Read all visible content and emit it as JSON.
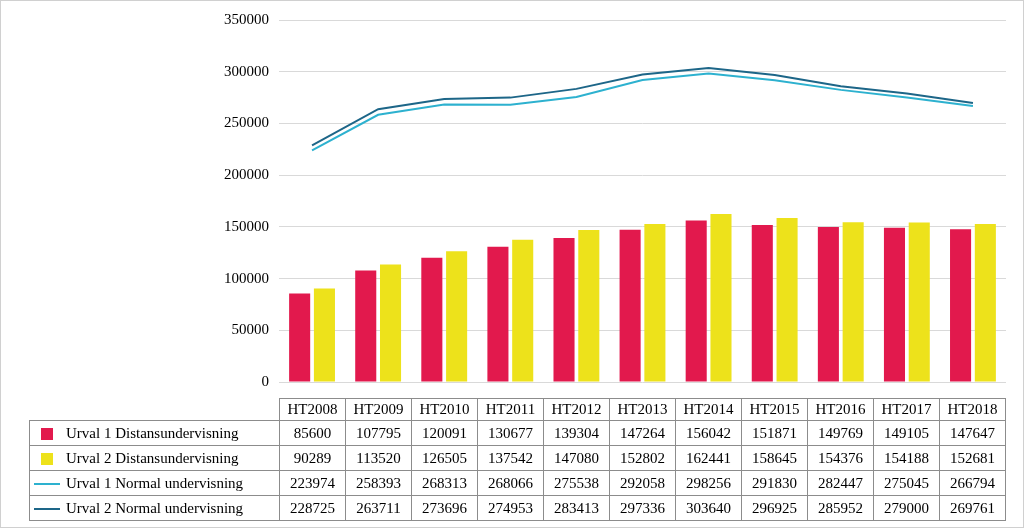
{
  "chart_data": {
    "type": "bar",
    "categories": [
      "HT2008",
      "HT2009",
      "HT2010",
      "HT2011",
      "HT2012",
      "HT2013",
      "HT2014",
      "HT2015",
      "HT2016",
      "HT2017",
      "HT2018"
    ],
    "series": [
      {
        "name": "Urval 1 Distansundervisning",
        "type": "bar",
        "color": "#e2194d",
        "values": [
          85600,
          107795,
          120091,
          130677,
          139304,
          147264,
          156042,
          151871,
          149769,
          149105,
          147647
        ]
      },
      {
        "name": "Urval 2 Distansundervisning",
        "type": "bar",
        "color": "#ede21b",
        "values": [
          90289,
          113520,
          126505,
          137542,
          147080,
          152802,
          162441,
          158645,
          154376,
          154188,
          152681
        ]
      },
      {
        "name": "Urval 1 Normal undervisning",
        "type": "line",
        "color": "#2db1cf",
        "values": [
          223974,
          258393,
          268313,
          268066,
          275538,
          292058,
          298256,
          291830,
          282447,
          275045,
          266794
        ]
      },
      {
        "name": "Urval 2 Normal undervisning",
        "type": "line",
        "color": "#1d6688",
        "values": [
          228725,
          263711,
          273696,
          274953,
          283413,
          297336,
          303640,
          296925,
          285952,
          279000,
          269761
        ]
      }
    ],
    "ylim": [
      0,
      350000
    ],
    "yticks": [
      0,
      50000,
      100000,
      150000,
      200000,
      250000,
      300000,
      350000
    ],
    "grid": true
  }
}
